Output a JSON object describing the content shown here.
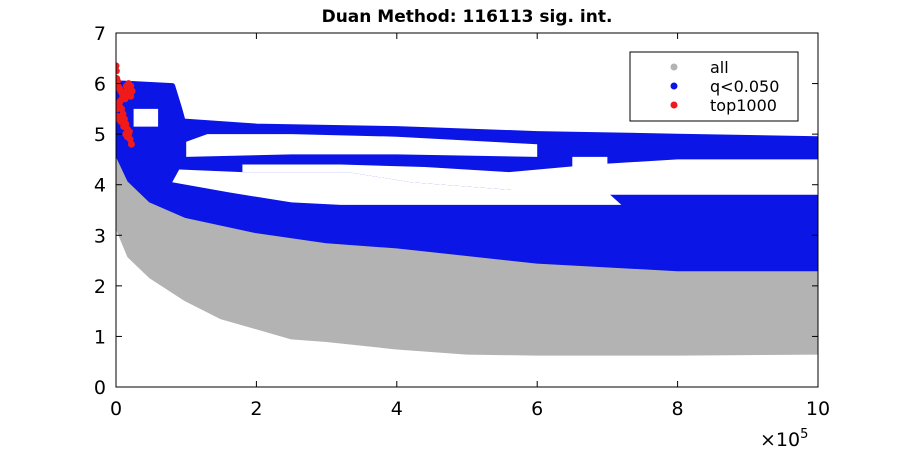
{
  "chart_data": {
    "type": "scatter",
    "title": "Duan Method: 116113 sig. int.",
    "xlabel": "",
    "ylabel": "",
    "xlim": [
      0,
      1000000
    ],
    "ylim": [
      0,
      7
    ],
    "x_tick_labels": [
      "0",
      "2",
      "4",
      "6",
      "8",
      "10"
    ],
    "x_tick_values": [
      0,
      200000,
      400000,
      600000,
      800000,
      1000000
    ],
    "x_exponent_prefix": "×10",
    "x_exponent": "5",
    "y_tick_labels": [
      "0",
      "1",
      "2",
      "3",
      "4",
      "5",
      "6",
      "7"
    ],
    "y_tick_values": [
      0,
      1,
      2,
      3,
      4,
      5,
      6,
      7
    ],
    "grid": false,
    "legend_position": "top-right",
    "series": [
      {
        "name": "all",
        "color": "#b3b3b3",
        "kind": "band",
        "upper": [
          [
            0,
            5.0
          ],
          [
            5000,
            4.6
          ],
          [
            20000,
            4.2
          ],
          [
            50000,
            3.8
          ],
          [
            100000,
            3.5
          ],
          [
            200000,
            3.2
          ],
          [
            300000,
            3.0
          ],
          [
            400000,
            2.9
          ],
          [
            600000,
            2.8
          ],
          [
            800000,
            2.75
          ],
          [
            1000000,
            2.7
          ]
        ],
        "lower": [
          [
            0,
            3.4
          ],
          [
            5000,
            3.1
          ],
          [
            20000,
            2.6
          ],
          [
            50000,
            2.2
          ],
          [
            100000,
            1.75
          ],
          [
            150000,
            1.4
          ],
          [
            200000,
            1.2
          ],
          [
            250000,
            1.0
          ],
          [
            300000,
            0.95
          ],
          [
            400000,
            0.8
          ],
          [
            500000,
            0.7
          ],
          [
            600000,
            0.68
          ],
          [
            800000,
            0.68
          ],
          [
            1000000,
            0.7
          ]
        ]
      },
      {
        "name": "q<0.050",
        "color": "#0a15e6",
        "kind": "band",
        "upper": [
          [
            3000,
            6.0
          ],
          [
            10000,
            6.0
          ],
          [
            80000,
            5.95
          ],
          [
            90000,
            5.5
          ],
          [
            95000,
            5.25
          ],
          [
            200000,
            5.15
          ],
          [
            400000,
            5.1
          ],
          [
            600000,
            5.0
          ],
          [
            800000,
            4.95
          ],
          [
            1000000,
            4.9
          ]
        ],
        "lower": [
          [
            3000,
            4.6
          ],
          [
            20000,
            4.1
          ],
          [
            50000,
            3.7
          ],
          [
            100000,
            3.4
          ],
          [
            200000,
            3.1
          ],
          [
            300000,
            2.9
          ],
          [
            400000,
            2.8
          ],
          [
            600000,
            2.5
          ],
          [
            800000,
            2.35
          ],
          [
            1000000,
            2.35
          ]
        ],
        "gaps": [
          [
            [
              180000,
              4.25
            ],
            [
              330000,
              4.25
            ],
            [
              420000,
              4.05
            ],
            [
              560000,
              3.9
            ],
            [
              650000,
              3.8
            ],
            [
              720000,
              3.8
            ],
            [
              1000000,
              3.8
            ],
            [
              1000000,
              4.5
            ],
            [
              800000,
              4.5
            ],
            [
              680000,
              4.4
            ],
            [
              560000,
              4.25
            ],
            [
              440000,
              4.35
            ],
            [
              320000,
              4.4
            ],
            [
              180000,
              4.4
            ]
          ],
          [
            [
              80000,
              4.05
            ],
            [
              160000,
              3.85
            ],
            [
              250000,
              3.65
            ],
            [
              320000,
              3.6
            ],
            [
              450000,
              3.6
            ],
            [
              600000,
              3.6
            ],
            [
              720000,
              3.6
            ],
            [
              700000,
              3.85
            ],
            [
              560000,
              3.9
            ],
            [
              420000,
              4.05
            ],
            [
              330000,
              4.25
            ],
            [
              180000,
              4.25
            ],
            [
              90000,
              4.3
            ]
          ],
          [
            [
              100000,
              4.55
            ],
            [
              250000,
              4.6
            ],
            [
              400000,
              4.6
            ],
            [
              600000,
              4.55
            ],
            [
              600000,
              4.8
            ],
            [
              400000,
              4.95
            ],
            [
              250000,
              5.0
            ],
            [
              130000,
              5.0
            ],
            [
              100000,
              4.85
            ]
          ],
          [
            [
              25000,
              5.5
            ],
            [
              60000,
              5.5
            ],
            [
              60000,
              5.15
            ],
            [
              25000,
              5.15
            ]
          ],
          [
            [
              650000,
              4.55
            ],
            [
              700000,
              4.55
            ],
            [
              700000,
              3.85
            ],
            [
              650000,
              3.9
            ]
          ]
        ]
      },
      {
        "name": "top1000",
        "color": "#f01a1a",
        "kind": "points",
        "points": [
          [
            0,
            6.35
          ],
          [
            500,
            6.25
          ],
          [
            1000,
            6.1
          ],
          [
            2000,
            6.05
          ],
          [
            3000,
            5.95
          ],
          [
            5000,
            5.9
          ],
          [
            7000,
            5.85
          ],
          [
            9000,
            5.8
          ],
          [
            11000,
            5.75
          ],
          [
            13000,
            5.7
          ],
          [
            15000,
            5.85
          ],
          [
            17000,
            5.9
          ],
          [
            19000,
            5.8
          ],
          [
            21000,
            5.75
          ],
          [
            3000,
            5.6
          ],
          [
            5000,
            5.55
          ],
          [
            8000,
            5.5
          ],
          [
            10000,
            5.4
          ],
          [
            12000,
            5.3
          ],
          [
            14000,
            5.2
          ],
          [
            16000,
            5.1
          ],
          [
            18000,
            5.0
          ],
          [
            20000,
            4.9
          ],
          [
            22000,
            4.8
          ],
          [
            6000,
            5.65
          ],
          [
            9000,
            5.7
          ],
          [
            12000,
            5.75
          ],
          [
            15000,
            5.95
          ],
          [
            18000,
            6.0
          ],
          [
            21000,
            5.95
          ],
          [
            23000,
            5.85
          ],
          [
            1000,
            5.5
          ],
          [
            2000,
            5.35
          ],
          [
            4000,
            5.3
          ],
          [
            7000,
            5.25
          ],
          [
            11000,
            5.15
          ],
          [
            14000,
            5.0
          ],
          [
            16000,
            4.95
          ],
          [
            19000,
            5.05
          ]
        ]
      }
    ]
  }
}
